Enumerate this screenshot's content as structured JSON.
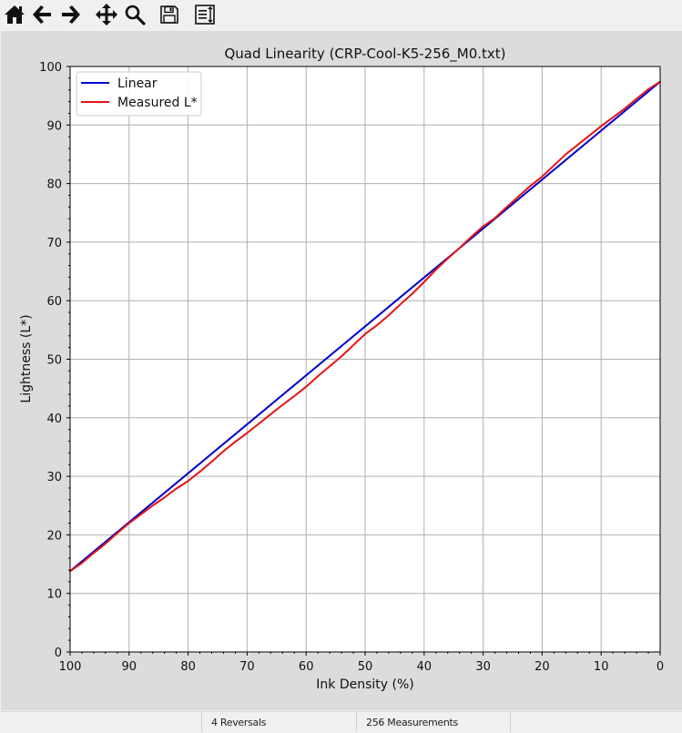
{
  "toolbar": {
    "buttons": [
      {
        "name": "home-button",
        "icon": "home-icon"
      },
      {
        "name": "back-button",
        "icon": "arrow-left-icon"
      },
      {
        "name": "forward-button",
        "icon": "arrow-right-icon"
      },
      {
        "name": "pan-button",
        "icon": "move-icon"
      },
      {
        "name": "zoom-button",
        "icon": "magnifier-icon"
      },
      {
        "name": "save-button",
        "icon": "floppy-disk-icon"
      },
      {
        "name": "configure-subplots-button",
        "icon": "subplots-icon"
      }
    ]
  },
  "status": {
    "reversals": "4 Reversals",
    "measurements": "256 Measurements"
  },
  "chart_data": {
    "type": "line",
    "title": "Quad Linearity  (CRP-Cool-K5-256_M0.txt)",
    "xlabel": "Ink Density (%)",
    "ylabel": "Lightness (L*)",
    "xlim": [
      100,
      0
    ],
    "ylim": [
      0,
      100
    ],
    "x_ticks": [
      "100",
      "90",
      "80",
      "70",
      "60",
      "50",
      "40",
      "30",
      "20",
      "10",
      "0"
    ],
    "y_ticks": [
      "0",
      "10",
      "20",
      "30",
      "40",
      "50",
      "60",
      "70",
      "80",
      "90",
      "100"
    ],
    "grid": true,
    "legend_position": "upper-left",
    "series": [
      {
        "name": "Linear",
        "color": "#0000cc",
        "x": [
          100,
          0
        ],
        "y": [
          13.8,
          97.4
        ]
      },
      {
        "name": "Measured L*",
        "color": "#e51414",
        "x": [
          100,
          98,
          96,
          94,
          92,
          90,
          88,
          86,
          84,
          82,
          80,
          78,
          76,
          74,
          72,
          70,
          68,
          66,
          64,
          62,
          60,
          58,
          56,
          54,
          52,
          50,
          48,
          46,
          44,
          42,
          40,
          38,
          36,
          34,
          32,
          30,
          28,
          26,
          24,
          22,
          20,
          18,
          16,
          14,
          12,
          10,
          8,
          6,
          4,
          2,
          0
        ],
        "y": [
          13.8,
          15.2,
          16.9,
          18.5,
          20.3,
          22.0,
          23.5,
          25.0,
          26.4,
          27.9,
          29.2,
          30.8,
          32.5,
          34.3,
          35.9,
          37.4,
          39.0,
          40.6,
          42.2,
          43.7,
          45.3,
          47.1,
          48.8,
          50.5,
          52.4,
          54.3,
          55.8,
          57.5,
          59.4,
          61.2,
          63.2,
          65.3,
          67.2,
          69.0,
          70.9,
          72.7,
          74.1,
          76.0,
          77.8,
          79.6,
          81.2,
          83.1,
          85.0,
          86.6,
          88.2,
          89.8,
          91.3,
          92.8,
          94.5,
          96.1,
          97.4
        ]
      }
    ]
  }
}
